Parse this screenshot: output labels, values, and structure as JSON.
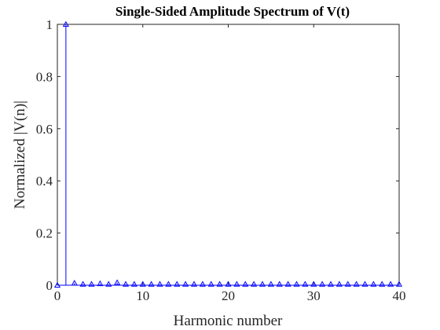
{
  "chart_data": {
    "type": "stem",
    "title": "Single-Sided Amplitude Spectrum of V(t)",
    "xlabel": "Harmonic number",
    "ylabel": "Normalized |V(n)|",
    "xlim": [
      0,
      40
    ],
    "ylim": [
      0,
      1
    ],
    "xticks": [
      0,
      10,
      20,
      30,
      40
    ],
    "yticks": [
      0,
      0.2,
      0.4,
      0.6,
      0.8,
      1
    ],
    "grid": false,
    "marker": "triangle",
    "color": "#0000ff",
    "x": [
      0,
      1,
      2,
      3,
      4,
      5,
      6,
      7,
      8,
      9,
      10,
      11,
      12,
      13,
      14,
      15,
      16,
      17,
      18,
      19,
      20,
      21,
      22,
      23,
      24,
      25,
      26,
      27,
      28,
      29,
      30,
      31,
      32,
      33,
      34,
      35,
      36,
      37,
      38,
      39,
      40
    ],
    "y": [
      0,
      1,
      0.008,
      0.004,
      0.004,
      0.006,
      0.004,
      0.01,
      0.004,
      0.004,
      0.004,
      0.004,
      0.004,
      0.004,
      0.004,
      0.004,
      0.004,
      0.004,
      0.004,
      0.004,
      0.004,
      0.004,
      0.004,
      0.004,
      0.004,
      0.004,
      0.004,
      0.004,
      0.004,
      0.004,
      0.004,
      0.004,
      0.004,
      0.004,
      0.004,
      0.004,
      0.004,
      0.004,
      0.004,
      0.004,
      0.004
    ]
  }
}
